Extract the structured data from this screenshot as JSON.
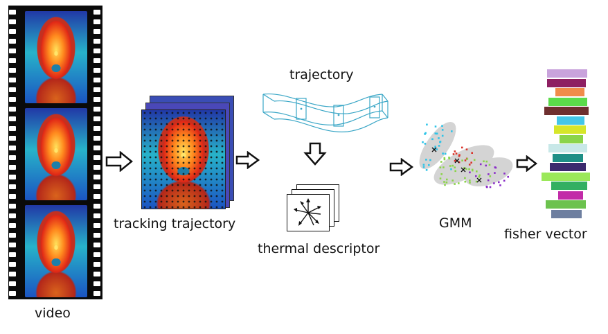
{
  "labels": {
    "video": "video",
    "tracking_trajectory": "tracking trajectory",
    "trajectory": "trajectory",
    "thermal_descriptor": "thermal descriptor",
    "gmm": "GMM",
    "fisher_vector": "fisher vector"
  },
  "icons": [
    "film-strip-icon",
    "flow-arrow-icon",
    "down-arrow-icon",
    "descriptor-arrows-icon",
    "trajectory-cube-icon"
  ],
  "colors": {
    "trajectory_line": "#39a6c6",
    "cluster_cyan": "#2ec4e8",
    "cluster_red": "#d9342b",
    "cluster_green": "#8bd44a",
    "cluster_purple": "#8a2fc7",
    "ellipse_fill": "#d4d4d4"
  },
  "fisher_vector_bars": [
    "#c9a3dc",
    "#8e1f62",
    "#f08c4a",
    "#5bdb4a",
    "#6e2f2f",
    "#44c6e8",
    "#d6e62a",
    "#8bd44a",
    "#c8e8e8",
    "#1e8f86",
    "#3c2a6e",
    "#9be85a",
    "#33af62",
    "#c22ba8",
    "#6cc24e",
    "#6e7fa0"
  ]
}
